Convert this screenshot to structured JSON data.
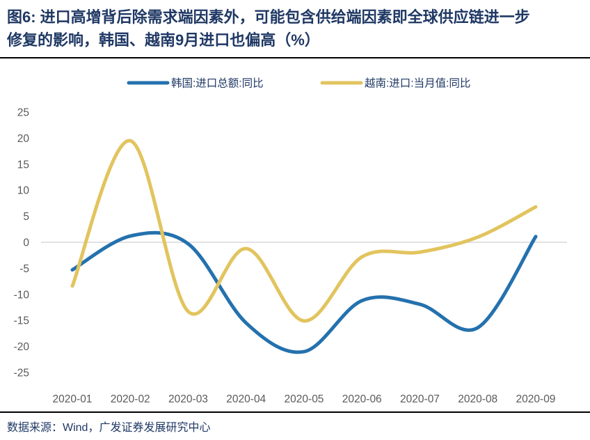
{
  "title": {
    "line1": "图6: 进口高增背后除需求端因素外，可能包含供给端因素即全球供应链进一步",
    "line2": "修复的影响，韩国、越南9月进口也偏高（%）"
  },
  "footer": {
    "source": "数据来源：Wind，广发证券发展研究中心"
  },
  "colors": {
    "title_text": "#1F3864",
    "axis_text": "#595959",
    "legend_text": "#1F3864",
    "divider": "#000000",
    "zero_gridline": "#D9D9D9",
    "background": "#FFFFFF",
    "korea_line": "#2471AE",
    "vietnam_line": "#E2C45E"
  },
  "chart_data": {
    "type": "line",
    "smooth": true,
    "title": "",
    "xlabel": "",
    "ylabel": "",
    "unit": "%",
    "legend_position": "top",
    "grid": "zero-line-only",
    "ylim": [
      -25,
      25
    ],
    "yticks": [
      25,
      20,
      15,
      10,
      5,
      0,
      -5,
      -10,
      -15,
      -20,
      -25
    ],
    "categories": [
      "2020-01",
      "2020-02",
      "2020-03",
      "2020-04",
      "2020-05",
      "2020-06",
      "2020-07",
      "2020-08",
      "2020-09"
    ],
    "series": [
      {
        "name": "韩国:进口总额:同比",
        "color": "#2471AE",
        "values": [
          -5.3,
          1.2,
          -0.3,
          -15.5,
          -21.0,
          -11.2,
          -11.9,
          -16.4,
          1.1
        ]
      },
      {
        "name": "越南:进口:当月值:同比",
        "color": "#E2C45E",
        "values": [
          -8.4,
          19.5,
          -13.3,
          -1.2,
          -15.1,
          -2.8,
          -1.9,
          1.0,
          6.8
        ]
      }
    ]
  }
}
